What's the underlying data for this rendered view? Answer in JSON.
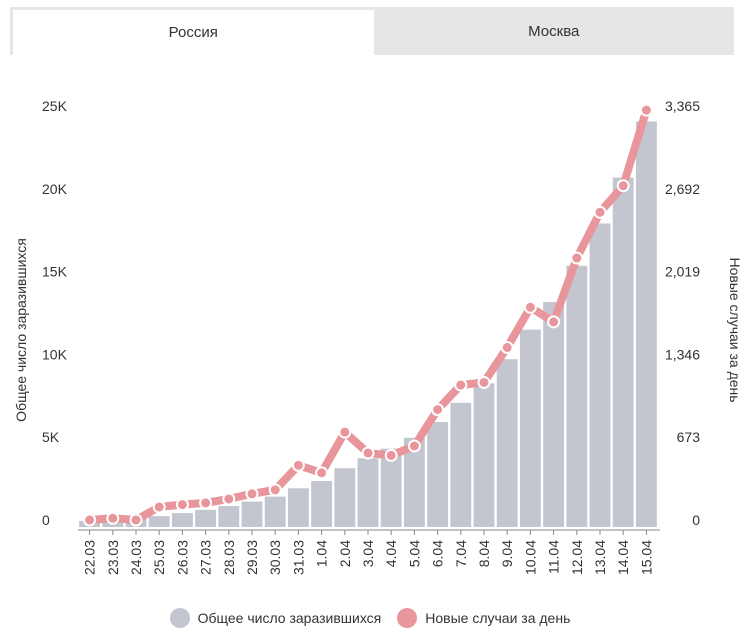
{
  "tabs": [
    {
      "label": "Россия",
      "active": true
    },
    {
      "label": "Москва",
      "active": false
    }
  ],
  "colors": {
    "bars": "#c3c6cf",
    "line": "#e8969b",
    "tab_bg": "#e6e6e6"
  },
  "chart_data": {
    "type": "bar+line",
    "categories": [
      "22.03",
      "23.03",
      "24.03",
      "25.03",
      "26.03",
      "27.03",
      "28.03",
      "29.03",
      "30.03",
      "31.03",
      "1.04",
      "2.04",
      "3.04",
      "4.04",
      "5.04",
      "6.04",
      "7.04",
      "8.04",
      "9.04",
      "10.04",
      "11.04",
      "12.04",
      "13.04",
      "14.04",
      "15.04"
    ],
    "series": [
      {
        "name": "Общее число заразившихся",
        "type": "bar",
        "axis": "left",
        "values": [
          367,
          438,
          495,
          658,
          840,
          1036,
          1264,
          1534,
          1836,
          2337,
          2777,
          3548,
          4149,
          4731,
          5389,
          6343,
          7497,
          8672,
          10131,
          11917,
          13584,
          15770,
          18328,
          21102,
          24490
        ]
      },
      {
        "name": "Новые случаи за день",
        "type": "line",
        "axis": "right",
        "values": [
          57,
          71,
          57,
          163,
          182,
          196,
          228,
          270,
          302,
          501,
          440,
          771,
          601,
          582,
          658,
          954,
          1154,
          1175,
          1459,
          1786,
          1667,
          2186,
          2558,
          2774,
          3388
        ]
      }
    ],
    "ylabel_left": "Общее число заразившихся",
    "ylabel_right": "Новые случаи за день",
    "yticks_left": [
      "0",
      "5K",
      "10K",
      "15K",
      "20K",
      "25K"
    ],
    "yticks_right": [
      "0",
      "673",
      "1,346",
      "2,019",
      "2,692",
      "3,365"
    ],
    "ylim_left": [
      0,
      25000
    ],
    "ylim_right": [
      0,
      3365
    ],
    "legend_position": "bottom"
  }
}
